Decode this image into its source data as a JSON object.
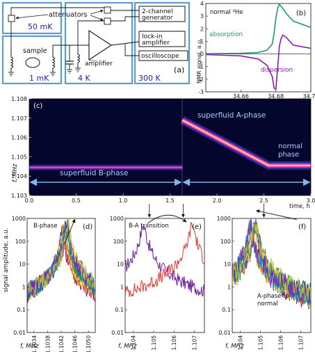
{
  "panel_a": {
    "label": "(a)",
    "boxes": [
      "50 mK",
      "1 mK",
      "4 K",
      "300 K"
    ],
    "components": [
      "attenuators",
      "sample",
      "amplifier",
      "2-channel",
      "generator",
      "lock-in",
      "amplifier",
      "oscilloscope"
    ]
  },
  "chart_data": [
    {
      "id": "b",
      "type": "line",
      "label": "(b)",
      "title": "normal ³He",
      "xlabel": "field, mT",
      "ylabel": "NMR signal, a.u.",
      "xlim": [
        34.64,
        34.7
      ],
      "ylim": [
        -3,
        4
      ],
      "xticks": [
        34.66,
        34.68,
        34.7
      ],
      "xtick_labels": [
        "34.66",
        "34.68",
        "34.70"
      ],
      "yticks": [
        -3,
        -2,
        -1,
        0,
        1,
        2,
        3,
        4
      ],
      "series": [
        {
          "name": "absorption",
          "color": "#1a9a6a",
          "x": [
            34.64,
            34.66,
            34.67,
            34.675,
            34.678,
            34.679,
            34.68,
            34.681,
            34.682,
            34.684,
            34.686,
            34.69,
            34.7
          ],
          "y": [
            0.02,
            0.05,
            0.12,
            0.3,
            0.8,
            1.6,
            2.8,
            3.6,
            3.95,
            3.6,
            3.2,
            2.6,
            2.1
          ]
        },
        {
          "name": "dispersion",
          "color": "#8a1ab0",
          "x": [
            34.64,
            34.66,
            34.67,
            34.675,
            34.678,
            34.679,
            34.68,
            34.681,
            34.682,
            34.683,
            34.684,
            34.686,
            34.688,
            34.69,
            34.7
          ],
          "y": [
            -0.05,
            -0.15,
            -0.4,
            -0.9,
            -1.8,
            -2.7,
            -2.8,
            -1.2,
            0.6,
            1.2,
            1.5,
            1.3,
            1.0,
            0.7,
            0.45
          ]
        }
      ]
    },
    {
      "id": "c",
      "type": "heatmap",
      "label": "(c)",
      "xlabel": "time, h",
      "ylabel": "f, MHz",
      "xlim": [
        0,
        3.0
      ],
      "ylim": [
        1.103,
        1.108
      ],
      "xticks": [
        0.0,
        0.5,
        1.0,
        1.5,
        2.0,
        2.5,
        3.0
      ],
      "xtick_labels": [
        "0.0",
        "0.5",
        "1.0",
        "1.5",
        "2.0",
        "2.5",
        "3.0"
      ],
      "yticks": [
        1.103,
        1.104,
        1.105,
        1.106,
        1.107,
        1.108
      ],
      "ytick_labels": [
        "1.103",
        "1.104",
        "1.105",
        "1.106",
        "1.107",
        "1.108"
      ],
      "annotations": [
        "superfluid A-phase",
        "normal",
        "phase",
        "superfluid B-phase"
      ],
      "transition_time": 1.63,
      "b_phase_freq": 1.10445,
      "a_phase_track": {
        "t": [
          1.63,
          2.55,
          3.0
        ],
        "f": [
          1.1069,
          1.10455,
          1.10455
        ]
      }
    },
    {
      "id": "d",
      "type": "line",
      "label": "(d)",
      "title": "B-phase",
      "xlabel": "f, MHz",
      "ylabel": "signal amplitude, a.u.",
      "log_y": true,
      "ylim": [
        0.01,
        1000
      ],
      "yticks": [
        0.01,
        0.1,
        1,
        10,
        100,
        1000
      ],
      "ytick_labels": [
        "0.01",
        "0.1",
        "1",
        "10",
        "100",
        "1000"
      ],
      "xlim": [
        1.1032,
        1.1052
      ],
      "xticks": [
        1.1034,
        1.1038,
        1.1042,
        1.1046,
        1.105
      ],
      "xtick_labels": [
        "1.1034",
        "1.1038",
        "1.1042",
        "1.1046",
        "1.1050"
      ],
      "peaks": [
        1.10422,
        1.10424,
        1.10426,
        1.10428,
        1.1043,
        1.10432,
        1.10434,
        1.10436,
        1.10438,
        1.1044
      ]
    },
    {
      "id": "e",
      "type": "line",
      "label": "(e)",
      "title": "B-A transition",
      "xlabel": "f, MHz",
      "log_y": true,
      "ylim": [
        0.01,
        1000
      ],
      "xlim": [
        1.1036,
        1.1075
      ],
      "xticks": [
        1.104,
        1.105,
        1.106,
        1.107
      ],
      "xtick_labels": [
        "1.104",
        "1.105",
        "1.106",
        "1.107"
      ],
      "peaks": [
        1.1045,
        1.1069
      ]
    },
    {
      "id": "f",
      "type": "line",
      "label": "(f)",
      "title": "A-phase to normal",
      "title_lines": [
        "A-phase to",
        "normal"
      ],
      "xlabel": "f, MHz",
      "log_y": true,
      "ylim": [
        0.01,
        1000
      ],
      "xlim": [
        1.1036,
        1.1075
      ],
      "xticks": [
        1.104,
        1.105,
        1.106,
        1.107
      ],
      "xtick_labels": [
        "1.104",
        "1.105",
        "1.106",
        "1.107"
      ],
      "peaks": [
        1.1045,
        1.10475,
        1.105,
        1.10525,
        1.1055,
        1.10575,
        1.106,
        1.10625,
        1.1065,
        1.10675,
        1.1069
      ]
    }
  ],
  "colors": {
    "box_border": "#5b9bd5",
    "blue_text": "#2222aa",
    "heat_background": "#05062e",
    "arrow": "#7fb8e8",
    "spectra_palette": [
      "#6a1b9a",
      "#e53935",
      "#fb8c00",
      "#fdd835",
      "#43a047",
      "#00897b",
      "#1e88e5",
      "#3949ab",
      "#8e24aa",
      "#c0ca33",
      "#546e7a",
      "#26c6da"
    ]
  }
}
